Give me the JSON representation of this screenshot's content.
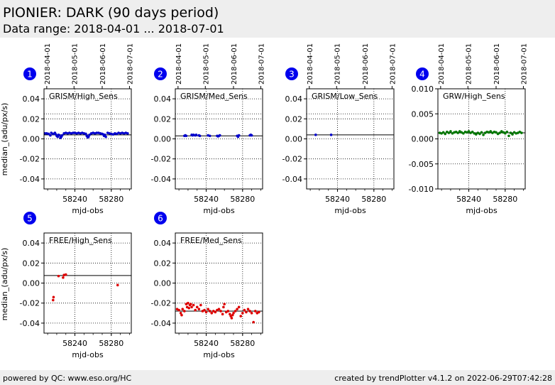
{
  "header": {
    "title": "PIONIER: DARK (90 days period)",
    "subtitle": "Data range: 2018-04-01 ... 2018-07-01"
  },
  "footer": {
    "left": "powered by QC: www.eso.org/HC",
    "right": "created by trendPlotter v4.1.2 on 2022-06-29T07:42:28"
  },
  "colors": {
    "badge": "#0000ee",
    "blue": "#0000cc",
    "green": "#007700",
    "red": "#dd0000",
    "reference": "#000000"
  },
  "chart_data": [
    {
      "type": "scatter",
      "badge": "1",
      "label": "GRISM/High_Sens",
      "xlabel": "mjd-obs",
      "ylabel": "median_(adu/px/s)",
      "xlim": [
        58206,
        58302
      ],
      "ylim": [
        -0.05,
        0.05
      ],
      "yticks": [
        "0.04",
        "0.02",
        "0.00",
        "-0.02",
        "-0.04"
      ],
      "ytick_values": [
        0.04,
        0.02,
        0,
        -0.02,
        -0.04
      ],
      "xticks": [
        "58240",
        "58280"
      ],
      "xtick_values": [
        58240,
        58280
      ],
      "top_dates": [
        "2018-04-01",
        "2018-05-01",
        "2018-06-01",
        "2018-07-01"
      ],
      "top_date_mjd": [
        58209,
        58239,
        58270,
        58300
      ],
      "hlines": [
        0.025,
        0.004
      ],
      "color": "#0000cc",
      "x": [
        58207,
        58209,
        58211,
        58213,
        58214,
        58216,
        58218,
        58219,
        58220,
        58221,
        58222,
        58223,
        58224,
        58225,
        58226,
        58228,
        58230,
        58232,
        58234,
        58236,
        58238,
        58240,
        58242,
        58244,
        58246,
        58248,
        58250,
        58252,
        58253,
        58254,
        58255,
        58256,
        58258,
        58260,
        58262,
        58264,
        58266,
        58268,
        58270,
        58271,
        58272,
        58273,
        58274,
        58276,
        58278,
        58280,
        58282,
        58284,
        58286,
        58288,
        58290,
        58292,
        58294,
        58296,
        58298
      ],
      "y": [
        0.0055,
        0.0055,
        0.005,
        0.0035,
        0.006,
        0.005,
        0.006,
        0.0045,
        0.003,
        0.002,
        0.004,
        0.0035,
        0.001,
        0.002,
        0.0035,
        0.0055,
        0.006,
        0.0055,
        0.006,
        0.0055,
        0.006,
        0.006,
        0.0055,
        0.006,
        0.0055,
        0.006,
        0.0055,
        0.005,
        0.003,
        0.0015,
        0.002,
        0.004,
        0.0055,
        0.006,
        0.0055,
        0.006,
        0.006,
        0.0055,
        0.005,
        0.0045,
        0.003,
        0.004,
        0.002,
        0.006,
        0.0055,
        0.005,
        0.0045,
        0.0055,
        0.005,
        0.006,
        0.0055,
        0.006,
        0.0055,
        0.006,
        0.0055
      ]
    },
    {
      "type": "scatter",
      "badge": "2",
      "label": "GRISM/Med_Sens",
      "xlabel": "mjd-obs",
      "ylabel": "",
      "xlim": [
        58206,
        58302
      ],
      "ylim": [
        -0.05,
        0.05
      ],
      "yticks": [
        "0.04",
        "0.02",
        "0.00",
        "-0.02",
        "-0.04"
      ],
      "ytick_values": [
        0.04,
        0.02,
        0,
        -0.02,
        -0.04
      ],
      "xticks": [
        "58240",
        "58280"
      ],
      "xtick_values": [
        58240,
        58280
      ],
      "top_dates": [
        "2018-04-01",
        "2018-05-01",
        "2018-06-01",
        "2018-07-01"
      ],
      "top_date_mjd": [
        58209,
        58239,
        58270,
        58300
      ],
      "hlines": [
        0.025,
        0.003
      ],
      "color": "#0000cc",
      "x": [
        58216,
        58217,
        58218,
        58224,
        58225,
        58226,
        58228,
        58229,
        58232,
        58233,
        58242,
        58244,
        58252,
        58253,
        58254,
        58255,
        58274,
        58275,
        58276,
        58288,
        58289,
        58290
      ],
      "y": [
        0.003,
        0.0035,
        0.003,
        0.004,
        0.0035,
        0.004,
        0.0035,
        0.004,
        0.0035,
        0.003,
        0.0035,
        0.003,
        0.003,
        0.0025,
        0.003,
        0.0035,
        0.003,
        0.002,
        0.0035,
        0.0035,
        0.004,
        0.0035
      ]
    },
    {
      "type": "scatter",
      "badge": "3",
      "label": "GRISM/Low_Sens",
      "xlabel": "mjd-obs",
      "ylabel": "",
      "xlim": [
        58206,
        58302
      ],
      "ylim": [
        -0.05,
        0.05
      ],
      "yticks": [
        "0.04",
        "0.02",
        "0.00",
        "-0.02",
        "-0.04"
      ],
      "ytick_values": [
        0.04,
        0.02,
        0,
        -0.02,
        -0.04
      ],
      "xticks": [
        "58240",
        "58280"
      ],
      "xtick_values": [
        58240,
        58280
      ],
      "top_dates": [
        "2018-04-01",
        "2018-05-01",
        "2018-06-01",
        "2018-07-01"
      ],
      "top_date_mjd": [
        58209,
        58239,
        58270,
        58300
      ],
      "hlines": [
        0.025,
        0.004
      ],
      "color": "#0000cc",
      "x": [
        58216,
        58233
      ],
      "y": [
        0.004,
        0.004
      ]
    },
    {
      "type": "scatter",
      "badge": "4",
      "label": "GRW/High_Sens",
      "xlabel": "mjd-obs",
      "ylabel": "",
      "xlim": [
        58206,
        58302
      ],
      "ylim": [
        -0.01,
        0.01
      ],
      "yticks": [
        "0.010",
        "0.005",
        "0.000",
        "-0.005",
        "-0.010"
      ],
      "ytick_values": [
        0.01,
        0.005,
        0,
        -0.005,
        -0.01
      ],
      "xticks": [
        "58240",
        "58280"
      ],
      "xtick_values": [
        58240,
        58280
      ],
      "top_dates": [
        "2018-04-01",
        "2018-05-01",
        "2018-06-01",
        "2018-07-01"
      ],
      "top_date_mjd": [
        58209,
        58239,
        58270,
        58300
      ],
      "hlines": [
        0.0012
      ],
      "color": "#007700",
      "x": [
        58208,
        58210,
        58212,
        58214,
        58216,
        58218,
        58220,
        58222,
        58224,
        58226,
        58228,
        58230,
        58232,
        58234,
        58236,
        58238,
        58240,
        58242,
        58244,
        58246,
        58248,
        58250,
        58252,
        58254,
        58256,
        58258,
        58260,
        58262,
        58264,
        58266,
        58268,
        58270,
        58272,
        58274,
        58276,
        58278,
        58280,
        58282,
        58284,
        58286,
        58288,
        58290,
        58292,
        58294,
        58296,
        58298
      ],
      "y": [
        0.0012,
        0.0011,
        0.0013,
        0.001,
        0.0014,
        0.0012,
        0.0015,
        0.0011,
        0.0013,
        0.0014,
        0.0012,
        0.0015,
        0.0013,
        0.0011,
        0.0014,
        0.0013,
        0.0015,
        0.0012,
        0.0014,
        0.0011,
        0.0009,
        0.0012,
        0.001,
        0.0013,
        0.0008,
        0.0012,
        0.0014,
        0.0013,
        0.0015,
        0.0012,
        0.0014,
        0.0013,
        0.001,
        0.0012,
        0.0015,
        0.0013,
        0.0011,
        0.0014,
        0.0006,
        0.0012,
        0.0009,
        0.0013,
        0.0011,
        0.0012,
        0.0014,
        0.0012
      ]
    },
    {
      "type": "scatter",
      "badge": "5",
      "label": "FREE/High_Sens",
      "xlabel": "mjd-obs",
      "ylabel": "median_(adu/px/s)",
      "xlim": [
        58206,
        58302
      ],
      "ylim": [
        -0.05,
        0.05
      ],
      "yticks": [
        "0.04",
        "0.02",
        "0.00",
        "-0.02",
        "-0.04"
      ],
      "ytick_values": [
        0.04,
        0.02,
        0,
        -0.02,
        -0.04
      ],
      "xticks": [
        "58240",
        "58280"
      ],
      "xtick_values": [
        58240,
        58280
      ],
      "top_dates": [],
      "top_date_mjd": [],
      "hlines": [
        0.0075
      ],
      "color": "#dd0000",
      "x": [
        58216,
        58216.5,
        58222,
        58227,
        58228,
        58230,
        58287
      ],
      "y": [
        -0.017,
        -0.014,
        0.007,
        0.0055,
        0.008,
        0.0085,
        -0.002
      ]
    },
    {
      "type": "scatter",
      "badge": "6",
      "label": "FREE/Med_Sens",
      "xlabel": "mjd-obs",
      "ylabel": "",
      "xlim": [
        58206,
        58302
      ],
      "ylim": [
        -0.05,
        0.05
      ],
      "yticks": [
        "0.04",
        "0.02",
        "0.00",
        "-0.02",
        "-0.04"
      ],
      "ytick_values": [
        0.04,
        0.02,
        0,
        -0.02,
        -0.04
      ],
      "xticks": [
        "58240",
        "58280"
      ],
      "xtick_values": [
        58240,
        58280
      ],
      "top_dates": [],
      "top_date_mjd": [],
      "hlines": [
        -0.028
      ],
      "color": "#dd0000",
      "x": [
        58208,
        58210,
        58212,
        58213,
        58214,
        58216,
        58218,
        58219,
        58220,
        58221,
        58222,
        58223,
        58224,
        58226,
        58228,
        58230,
        58232,
        58234,
        58236,
        58238,
        58240,
        58242,
        58244,
        58246,
        58248,
        58250,
        58252,
        58254,
        58256,
        58258,
        58259,
        58260,
        58262,
        58264,
        58266,
        58267,
        58268,
        58269,
        58270,
        58272,
        58274,
        58276,
        58278,
        58280,
        58282,
        58284,
        58286,
        58288,
        58290,
        58292,
        58294,
        58296,
        58298
      ],
      "y": [
        -0.026,
        -0.027,
        -0.03,
        -0.032,
        -0.026,
        -0.028,
        -0.021,
        -0.024,
        -0.02,
        -0.025,
        -0.022,
        -0.021,
        -0.024,
        -0.022,
        -0.027,
        -0.024,
        -0.026,
        -0.022,
        -0.028,
        -0.027,
        -0.029,
        -0.026,
        -0.028,
        -0.03,
        -0.028,
        -0.029,
        -0.027,
        -0.026,
        -0.028,
        -0.031,
        -0.024,
        -0.021,
        -0.029,
        -0.028,
        -0.031,
        -0.033,
        -0.035,
        -0.032,
        -0.03,
        -0.028,
        -0.026,
        -0.024,
        -0.033,
        -0.03,
        -0.027,
        -0.029,
        -0.026,
        -0.028,
        -0.03,
        -0.039,
        -0.028,
        -0.03,
        -0.029
      ]
    }
  ]
}
